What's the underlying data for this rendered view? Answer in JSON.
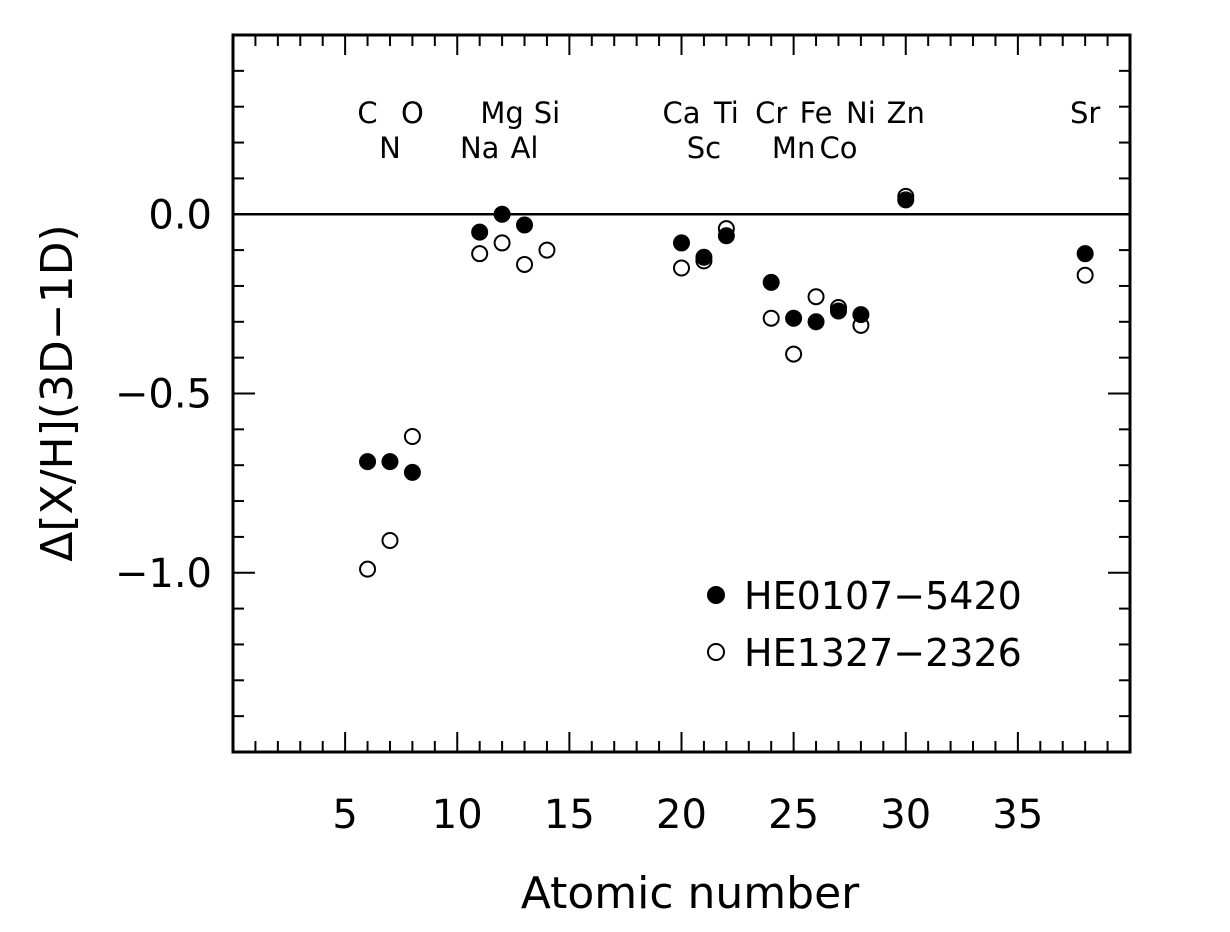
{
  "chart_data": {
    "type": "scatter",
    "title": "",
    "xlabel": "Atomic number",
    "ylabel": "Δ[X/H](3D−1D)",
    "xlim": [
      0,
      40
    ],
    "ylim": [
      -1.5,
      0.5
    ],
    "x_ticks": [
      5,
      10,
      15,
      20,
      25,
      30,
      35
    ],
    "x_tick_labels": [
      "5",
      "10",
      "15",
      "20",
      "25",
      "30",
      "35"
    ],
    "y_ticks": [
      0.0,
      -0.5,
      -1.0
    ],
    "y_tick_labels": [
      "0.0",
      "−0.5",
      "−1.0"
    ],
    "reference_line_y": 0.0,
    "grid": false,
    "legend_position": "bottom-right",
    "series": [
      {
        "name": "HE0107−5420",
        "marker": "filled-circle",
        "x": [
          6,
          7,
          8,
          11,
          12,
          13,
          20,
          21,
          22,
          24,
          25,
          26,
          27,
          28,
          30,
          38
        ],
        "y": [
          -0.69,
          -0.69,
          -0.72,
          -0.05,
          0.0,
          -0.03,
          -0.08,
          -0.12,
          -0.06,
          -0.19,
          -0.29,
          -0.3,
          -0.27,
          -0.28,
          0.04,
          -0.11
        ]
      },
      {
        "name": "HE1327−2326",
        "marker": "open-circle",
        "x": [
          6,
          7,
          8,
          11,
          12,
          13,
          14,
          20,
          21,
          22,
          24,
          25,
          26,
          27,
          28,
          30,
          38
        ],
        "y": [
          -0.99,
          -0.91,
          -0.62,
          -0.11,
          -0.08,
          -0.14,
          -0.1,
          -0.15,
          -0.13,
          -0.04,
          -0.29,
          -0.39,
          -0.23,
          -0.26,
          -0.31,
          0.05,
          -0.17
        ]
      }
    ],
    "element_labels": [
      {
        "text": "C",
        "x": 6,
        "row": 1
      },
      {
        "text": "O",
        "x": 8,
        "row": 1
      },
      {
        "text": "N",
        "x": 7,
        "row": 2
      },
      {
        "text": "Mg",
        "x": 12,
        "row": 1
      },
      {
        "text": "Si",
        "x": 14,
        "row": 1
      },
      {
        "text": "Na",
        "x": 11,
        "row": 2
      },
      {
        "text": "Al",
        "x": 13,
        "row": 2
      },
      {
        "text": "Ca",
        "x": 20,
        "row": 1
      },
      {
        "text": "Ti",
        "x": 22,
        "row": 1
      },
      {
        "text": "Sc",
        "x": 21,
        "row": 2
      },
      {
        "text": "Cr",
        "x": 24,
        "row": 1
      },
      {
        "text": "Fe",
        "x": 26,
        "row": 1
      },
      {
        "text": "Ni",
        "x": 28,
        "row": 1
      },
      {
        "text": "Mn",
        "x": 25,
        "row": 2
      },
      {
        "text": "Co",
        "x": 27,
        "row": 2
      },
      {
        "text": "Zn",
        "x": 30,
        "row": 1
      },
      {
        "text": "Sr",
        "x": 38,
        "row": 1
      }
    ]
  }
}
